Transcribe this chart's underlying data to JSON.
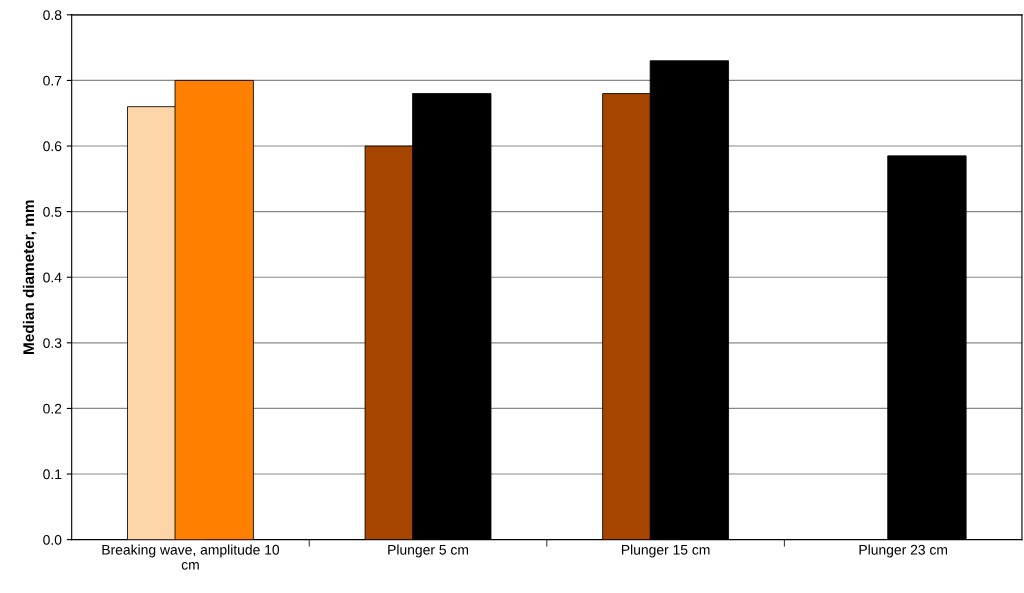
{
  "chart_data": {
    "type": "bar",
    "ylabel": "Median diameter, mm",
    "categories": [
      "Breaking wave, amplitude 10\ncm",
      "Plunger 5 cm",
      "Plunger 15 cm",
      "Plunger 23 cm"
    ],
    "series": [
      {
        "colors": [
          "#fdd5a8",
          "#a64500",
          "#a64500",
          "#a64500"
        ],
        "values": [
          0.66,
          0.6,
          0.68,
          null
        ]
      },
      {
        "colors": [
          "#ff7f00",
          "#000000",
          "#000000",
          "#000000"
        ],
        "values": [
          0.7,
          0.68,
          0.73,
          0.585
        ]
      }
    ],
    "ylim": [
      0,
      0.8
    ],
    "yticks": [
      {
        "value": 0,
        "label": "0.0"
      },
      {
        "value": 0.1,
        "label": "0.1"
      },
      {
        "value": 0.2,
        "label": "0.2"
      },
      {
        "value": 0.3,
        "label": "0.3"
      },
      {
        "value": 0.4,
        "label": "0.4"
      },
      {
        "value": 0.5,
        "label": "0.5"
      },
      {
        "value": 0.6,
        "label": "0.6"
      },
      {
        "value": 0.7,
        "label": "0.7"
      },
      {
        "value": 0.8,
        "label": "0.8"
      }
    ],
    "grid": "y",
    "legend": false
  }
}
